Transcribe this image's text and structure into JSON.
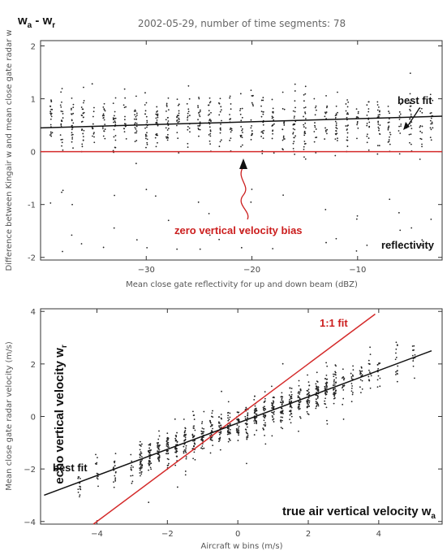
{
  "chart_data": [
    {
      "type": "scatter",
      "title": "2002-05-29, number of time segments: 78",
      "corner_label": "w",
      "corner_label_sub_a": "a",
      "corner_label_sep": " - w",
      "corner_label_sub_r": "r",
      "ylabel": "Difference between Kingair w and mean close gate radar w",
      "xlabel": "Mean close gate reflectivity for up and down beam (dBZ)",
      "xlim": [
        -40,
        -2
      ],
      "ylim": [
        -2.05,
        2.1
      ],
      "xticks": [
        -30,
        -20,
        -10
      ],
      "yticks": [
        -2,
        -1,
        0,
        1,
        2
      ],
      "best_fit": {
        "x": [
          -40,
          -2
        ],
        "y": [
          0.45,
          0.67
        ],
        "label": "best fit"
      },
      "zero_line": {
        "y": 0,
        "color": "#d42a2a",
        "label": "zero vertical velocity bias"
      },
      "panel_label": "reflectivity",
      "columns_x": [
        -39,
        -38,
        -37,
        -36,
        -35,
        -34,
        -33,
        -32,
        -31,
        -30,
        -29,
        -28,
        -27,
        -26,
        -25,
        -24,
        -23,
        -22,
        -21,
        -20,
        -19,
        -18,
        -17,
        -16,
        -15,
        -14,
        -13,
        -12,
        -11,
        -10,
        -9,
        -8,
        -7,
        -6,
        -5,
        -4,
        -3
      ],
      "scatter_summary": "Vertical columns of points spread from roughly -1 to 1.8, densest between 0 and 1, with sparse outliers near -1.9."
    },
    {
      "type": "scatter",
      "ylabel": "Mean close gate radar velocity (m/s)",
      "xlabel": "Aircraft w bins (m/s)",
      "xlim": [
        -5.6,
        5.8
      ],
      "ylim": [
        -4.1,
        4.1
      ],
      "xticks": [
        -4,
        -2,
        0,
        2,
        4
      ],
      "yticks": [
        -4,
        -2,
        0,
        2,
        4
      ],
      "best_fit": {
        "x": [
          -5.5,
          5.5
        ],
        "y": [
          -3.0,
          2.5
        ],
        "label": "best fit"
      },
      "one_to_one": {
        "x": [
          -4.1,
          3.9
        ],
        "y": [
          -4.1,
          3.9
        ],
        "color": "#d42a2a",
        "label": "1:1 fit"
      },
      "ylabel_big": "echo vertical velocity w",
      "ylabel_big_sub": "r",
      "xlabel_big": "true air vertical velocity w",
      "xlabel_big_sub": "a",
      "columns_x": [
        -4.5,
        -4.0,
        -3.5,
        -3.0,
        -2.75,
        -2.5,
        -2.25,
        -2.0,
        -1.75,
        -1.5,
        -1.25,
        -1.0,
        -0.75,
        -0.5,
        -0.25,
        0.0,
        0.25,
        0.5,
        0.75,
        1.0,
        1.25,
        1.5,
        1.75,
        2.0,
        2.25,
        2.5,
        2.75,
        3.0,
        3.25,
        3.5,
        3.75,
        4.0,
        4.5,
        5.0
      ],
      "scatter_summary": "Points cluster around the best-fit line with spread about ±1 m/s."
    }
  ],
  "colors": {
    "axis": "#333333",
    "points": "#222222",
    "red": "#d42a2a"
  }
}
